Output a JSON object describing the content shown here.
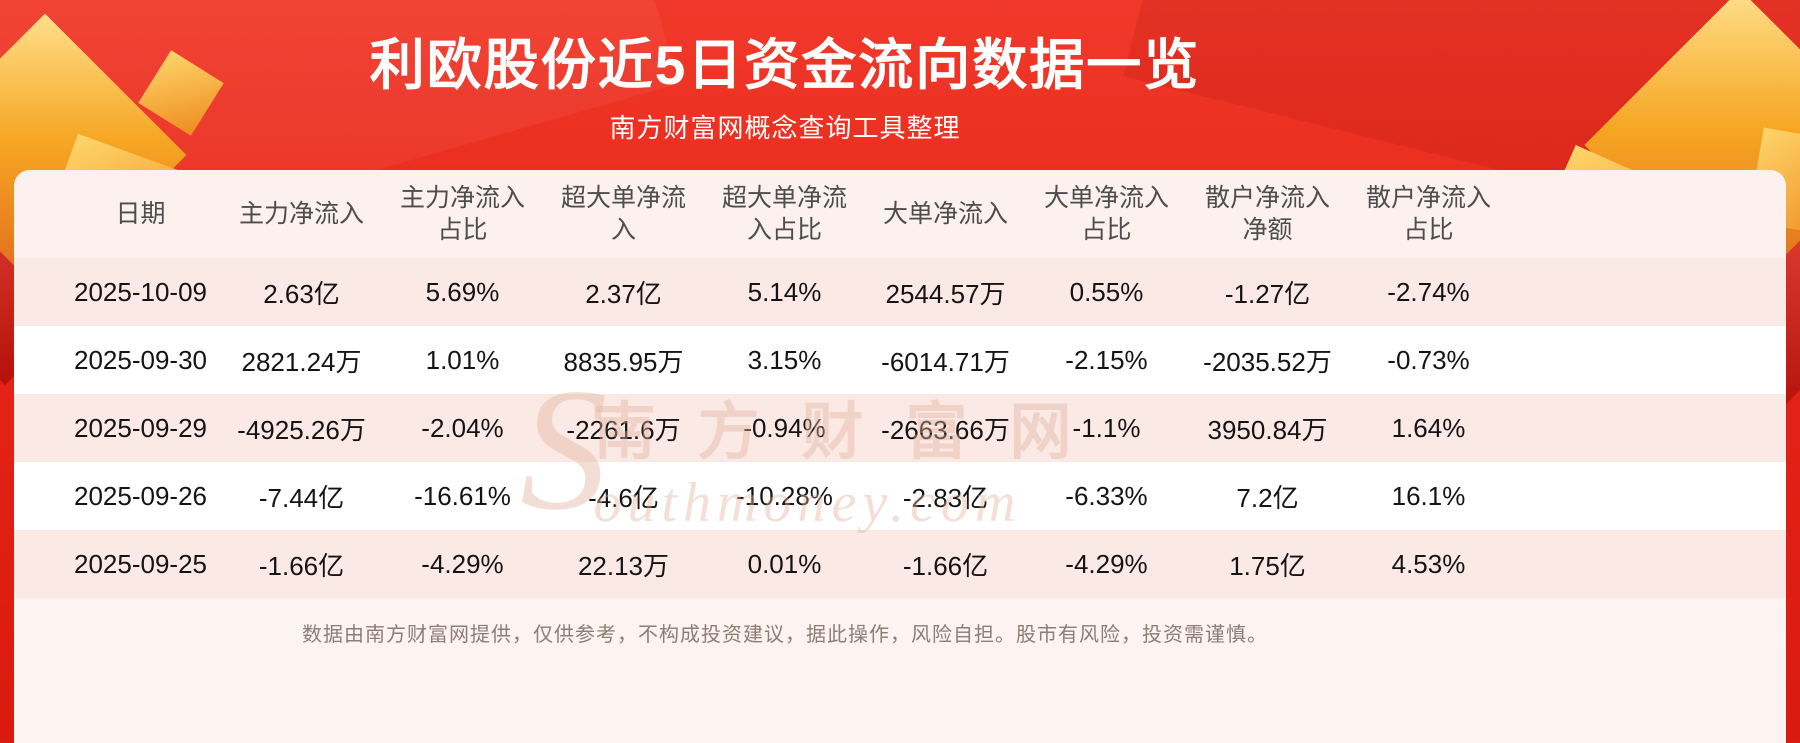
{
  "page": {
    "title": "利欧股份近5日资金流向数据一览",
    "subtitle": "南方财富网概念查询工具整理",
    "footer": "数据由南方财富网提供，仅供参考，不构成投资建议，据此操作，风险自担。股市有风险，投资需谨慎。",
    "watermark": {
      "initial": "S",
      "line1": "南方财富网",
      "line2": "outhmoney.com"
    }
  },
  "colors": {
    "background_red": "#e42417",
    "panel_background": "#fdf3f1",
    "row_stripe_pink": "#fbe9e6",
    "row_white": "#ffffff",
    "gold_accent": "#f6a623",
    "title_text": "#ffffff",
    "header_text": "#4d4d4d",
    "cell_text": "#141414",
    "footer_text": "#8e7d75"
  },
  "table": {
    "headers": [
      "日期",
      "主力净流入",
      "主力净流入\n占比",
      "超大单净流\n入",
      "超大单净流\n入占比",
      "大单净流入",
      "大单净流入\n占比",
      "散户净流入\n净额",
      "散户净流入\n占比"
    ]
  },
  "chart_data": {
    "type": "table",
    "title": "利欧股份近5日资金流向数据一览",
    "columns": [
      "日期",
      "主力净流入",
      "主力净流入占比",
      "超大单净流入",
      "超大单净流入占比",
      "大单净流入",
      "大单净流入占比",
      "散户净流入净额",
      "散户净流入占比"
    ],
    "rows": [
      [
        "2025-10-09",
        "2.63亿",
        "5.69%",
        "2.37亿",
        "5.14%",
        "2544.57万",
        "0.55%",
        "-1.27亿",
        "-2.74%"
      ],
      [
        "2025-09-30",
        "2821.24万",
        "1.01%",
        "8835.95万",
        "3.15%",
        "-6014.71万",
        "-2.15%",
        "-2035.52万",
        "-0.73%"
      ],
      [
        "2025-09-29",
        "-4925.26万",
        "-2.04%",
        "-2261.6万",
        "-0.94%",
        "-2663.66万",
        "-1.1%",
        "3950.84万",
        "1.64%"
      ],
      [
        "2025-09-26",
        "-7.44亿",
        "-16.61%",
        "-4.6亿",
        "-10.28%",
        "-2.83亿",
        "-6.33%",
        "7.2亿",
        "16.1%"
      ],
      [
        "2025-09-25",
        "-1.66亿",
        "-4.29%",
        "22.13万",
        "0.01%",
        "-1.66亿",
        "-4.29%",
        "1.75亿",
        "4.53%"
      ]
    ]
  }
}
